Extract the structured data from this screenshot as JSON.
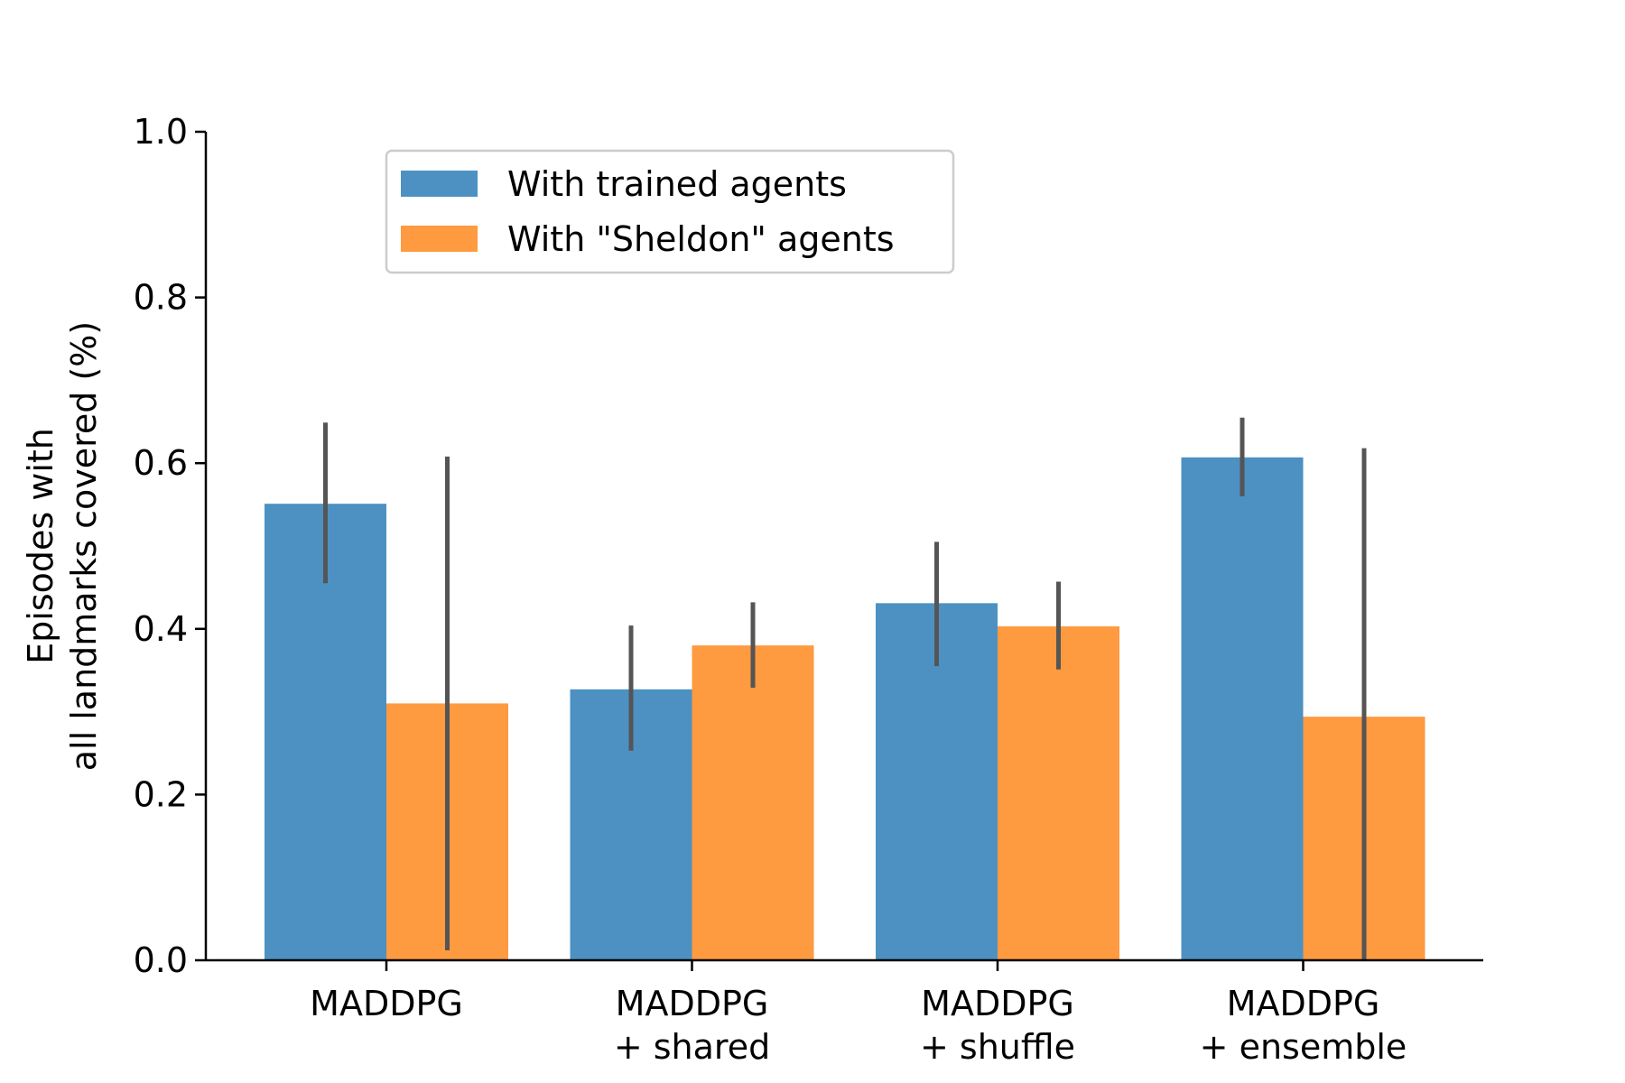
{
  "chart_data": {
    "type": "bar",
    "title": "",
    "xlabel": "",
    "ylabel_lines": [
      "Episodes with",
      "all landmarks covered (%)"
    ],
    "ylim": [
      0.0,
      1.0
    ],
    "yticks": [
      0.0,
      0.2,
      0.4,
      0.6,
      0.8,
      1.0
    ],
    "ytick_labels": [
      "0.0",
      "0.2",
      "0.4",
      "0.6",
      "0.8",
      "1.0"
    ],
    "categories": [
      {
        "lines": [
          "MADDPG"
        ]
      },
      {
        "lines": [
          "MADDPG",
          "+ shared"
        ]
      },
      {
        "lines": [
          "MADDPG",
          "+ shuffle"
        ]
      },
      {
        "lines": [
          "MADDPG",
          "+ ensemble"
        ]
      }
    ],
    "series": [
      {
        "name": "With trained agents",
        "color": "#4c91c2",
        "values": [
          0.551,
          0.327,
          0.431,
          0.607
        ],
        "err_low": [
          0.455,
          0.253,
          0.355,
          0.56
        ],
        "err_high": [
          0.649,
          0.404,
          0.505,
          0.655
        ]
      },
      {
        "name": "With \"Sheldon\" agents",
        "color": "#fe9a40",
        "values": [
          0.31,
          0.38,
          0.403,
          0.294
        ],
        "err_low": [
          0.012,
          0.329,
          0.351,
          0.0
        ],
        "err_high": [
          0.608,
          0.432,
          0.457,
          0.618
        ]
      }
    ],
    "error_bar_color": "#555555",
    "grid": false,
    "legend_position": "upper-left"
  }
}
